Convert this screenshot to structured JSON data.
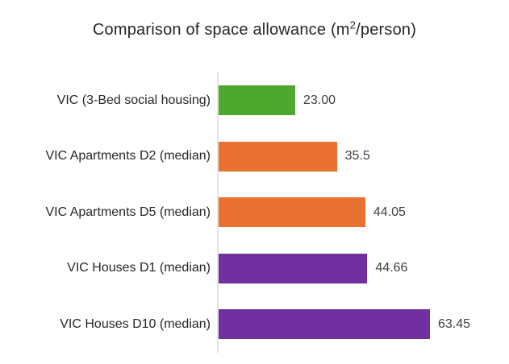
{
  "title": {
    "prefix": "Comparison of space allowance (m",
    "superscript": "2",
    "suffix": "/person)"
  },
  "chart_data": {
    "type": "bar",
    "orientation": "horizontal",
    "title": "Comparison of space allowance (m²/person)",
    "categories": [
      "VIC (3-Bed social housing)",
      "VIC Apartments D2 (median)",
      "VIC Apartments D5 (median)",
      "VIC Houses D1 (median)",
      "VIC Houses D10 (median)"
    ],
    "values": [
      23.0,
      35.5,
      44.05,
      44.66,
      63.45
    ],
    "value_labels": [
      "23.00",
      "35.5",
      "44.05",
      "44.66",
      "63.45"
    ],
    "bar_colors": [
      "#4EA72E",
      "#E97132",
      "#E97132",
      "#7030A0",
      "#7030A0"
    ],
    "xlabel": "",
    "ylabel": "",
    "xlim": [
      0,
      70
    ],
    "grid": false,
    "legend": false,
    "axis_line_color": "#E2E2E2",
    "background_color": "#FFFFFF"
  }
}
